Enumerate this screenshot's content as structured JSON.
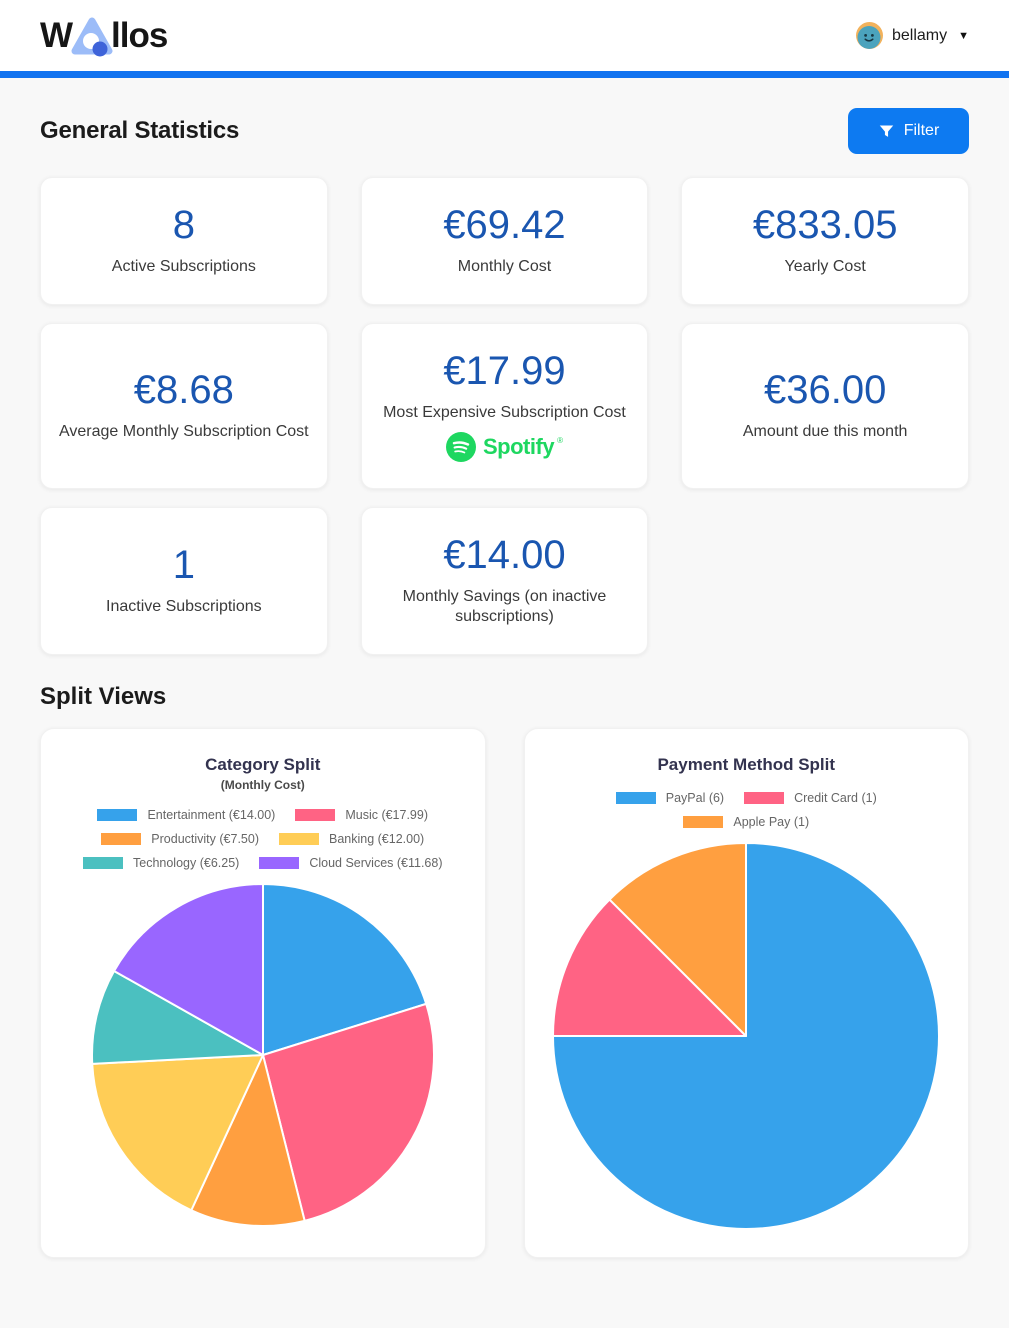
{
  "app": {
    "name": "Wallos",
    "logo_w": "W",
    "logo_rest": "llos"
  },
  "header": {
    "username": "bellamy",
    "caret": "▼"
  },
  "page": {
    "general_statistics_title": "General Statistics",
    "split_views_title": "Split Views",
    "filter_label": "Filter"
  },
  "stats": [
    {
      "value": "8",
      "label": "Active Subscriptions"
    },
    {
      "value": "€69.42",
      "label": "Monthly Cost"
    },
    {
      "value": "€833.05",
      "label": "Yearly Cost"
    },
    {
      "value": "€8.68",
      "label": "Average Monthly Subscription Cost"
    },
    {
      "value": "€17.99",
      "label": "Most Expensive Subscription Cost",
      "badge": "Spotify",
      "badge_reg": "®"
    },
    {
      "value": "€36.00",
      "label": "Amount due this month"
    },
    {
      "value": "1",
      "label": "Inactive Subscriptions"
    },
    {
      "value": "€14.00",
      "label": "Monthly Savings (on inactive subscriptions)"
    }
  ],
  "chart_data": [
    {
      "type": "pie",
      "title": "Category Split",
      "subtitle": "(Monthly Cost)",
      "legend_position": "top",
      "categories": [
        "Entertainment",
        "Music",
        "Productivity",
        "Banking",
        "Technology",
        "Cloud Services"
      ],
      "legend_labels": [
        "Entertainment (€14.00)",
        "Music (€17.99)",
        "Productivity (€7.50)",
        "Banking (€12.00)",
        "Technology (€6.25)",
        "Cloud Services (€11.68)"
      ],
      "values": [
        14.0,
        17.99,
        7.5,
        12.0,
        6.25,
        11.68
      ],
      "unit": "EUR",
      "colors": [
        "#36a2eb",
        "#ff6384",
        "#ff9f40",
        "#ffcd56",
        "#4bc0c0",
        "#9966ff"
      ],
      "start_angle_deg": -90,
      "direction": "clockwise"
    },
    {
      "type": "pie",
      "title": "Payment Method Split",
      "subtitle": "",
      "legend_position": "top",
      "categories": [
        "PayPal",
        "Credit Card",
        "Apple Pay"
      ],
      "legend_labels": [
        "PayPal (6)",
        "Credit Card (1)",
        "Apple Pay (1)"
      ],
      "values": [
        6,
        1,
        1
      ],
      "unit": "count",
      "colors": [
        "#36a2eb",
        "#ff6384",
        "#ff9f40"
      ],
      "start_angle_deg": -90,
      "direction": "clockwise"
    }
  ],
  "colors": {
    "accent_blue": "#0d7af1",
    "top_bar_blue": "#1173f0",
    "stat_value_blue": "#1a56b0",
    "spotify_green": "#1ed760",
    "logo_triangle": "#9cbcf8",
    "logo_dot": "#3e63d9",
    "background": "#f8f8f8"
  }
}
